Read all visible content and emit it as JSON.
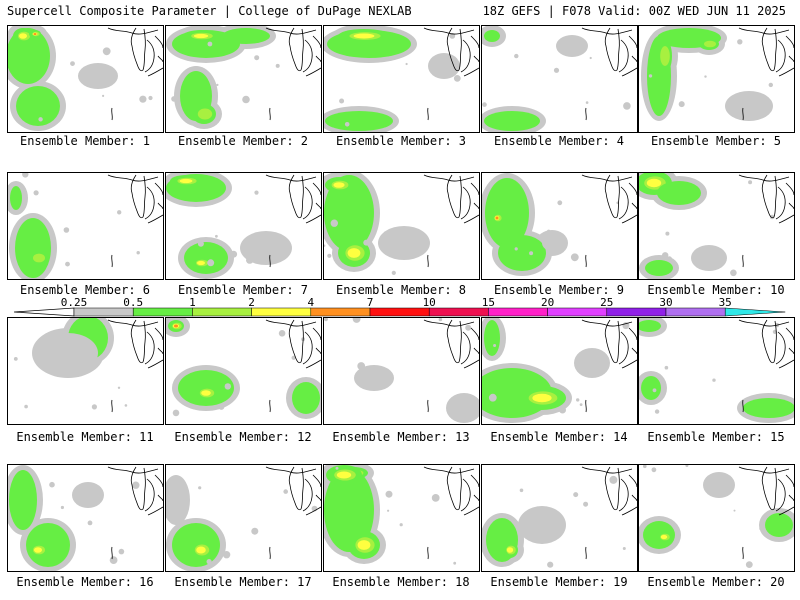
{
  "header": {
    "left": "Supercell Composite Parameter | College of DuPage NEXLAB",
    "right": "18Z GEFS | F078 Valid: 00Z WED JUN 11 2025"
  },
  "colorbar": {
    "labels": [
      "0.25",
      "0.5",
      "1",
      "2",
      "4",
      "7",
      "10",
      "15",
      "20",
      "25",
      "30",
      "35"
    ],
    "colors": [
      "#c8c8c8",
      "#66ee44",
      "#a8f040",
      "#ffff40",
      "#ff9020",
      "#ff1010",
      "#ee1050",
      "#ff20c8",
      "#e040ff",
      "#9020e8",
      "#b070f0",
      "#30e8e8"
    ]
  },
  "panels": [
    {
      "caption": "Ensemble Member: 1"
    },
    {
      "caption": "Ensemble Member: 2"
    },
    {
      "caption": "Ensemble Member: 3"
    },
    {
      "caption": "Ensemble Member: 4"
    },
    {
      "caption": "Ensemble Member: 5"
    },
    {
      "caption": "Ensemble Member: 6"
    },
    {
      "caption": "Ensemble Member: 7"
    },
    {
      "caption": "Ensemble Member: 8"
    },
    {
      "caption": "Ensemble Member: 9"
    },
    {
      "caption": "Ensemble Member: 10"
    },
    {
      "caption": "Ensemble Member: 11"
    },
    {
      "caption": "Ensemble Member: 12"
    },
    {
      "caption": "Ensemble Member: 13"
    },
    {
      "caption": "Ensemble Member: 14"
    },
    {
      "caption": "Ensemble Member: 15"
    },
    {
      "caption": "Ensemble Member: 16"
    },
    {
      "caption": "Ensemble Member: 17"
    },
    {
      "caption": "Ensemble Member: 18"
    },
    {
      "caption": "Ensemble Member: 19"
    },
    {
      "caption": "Ensemble Member: 20"
    }
  ]
}
